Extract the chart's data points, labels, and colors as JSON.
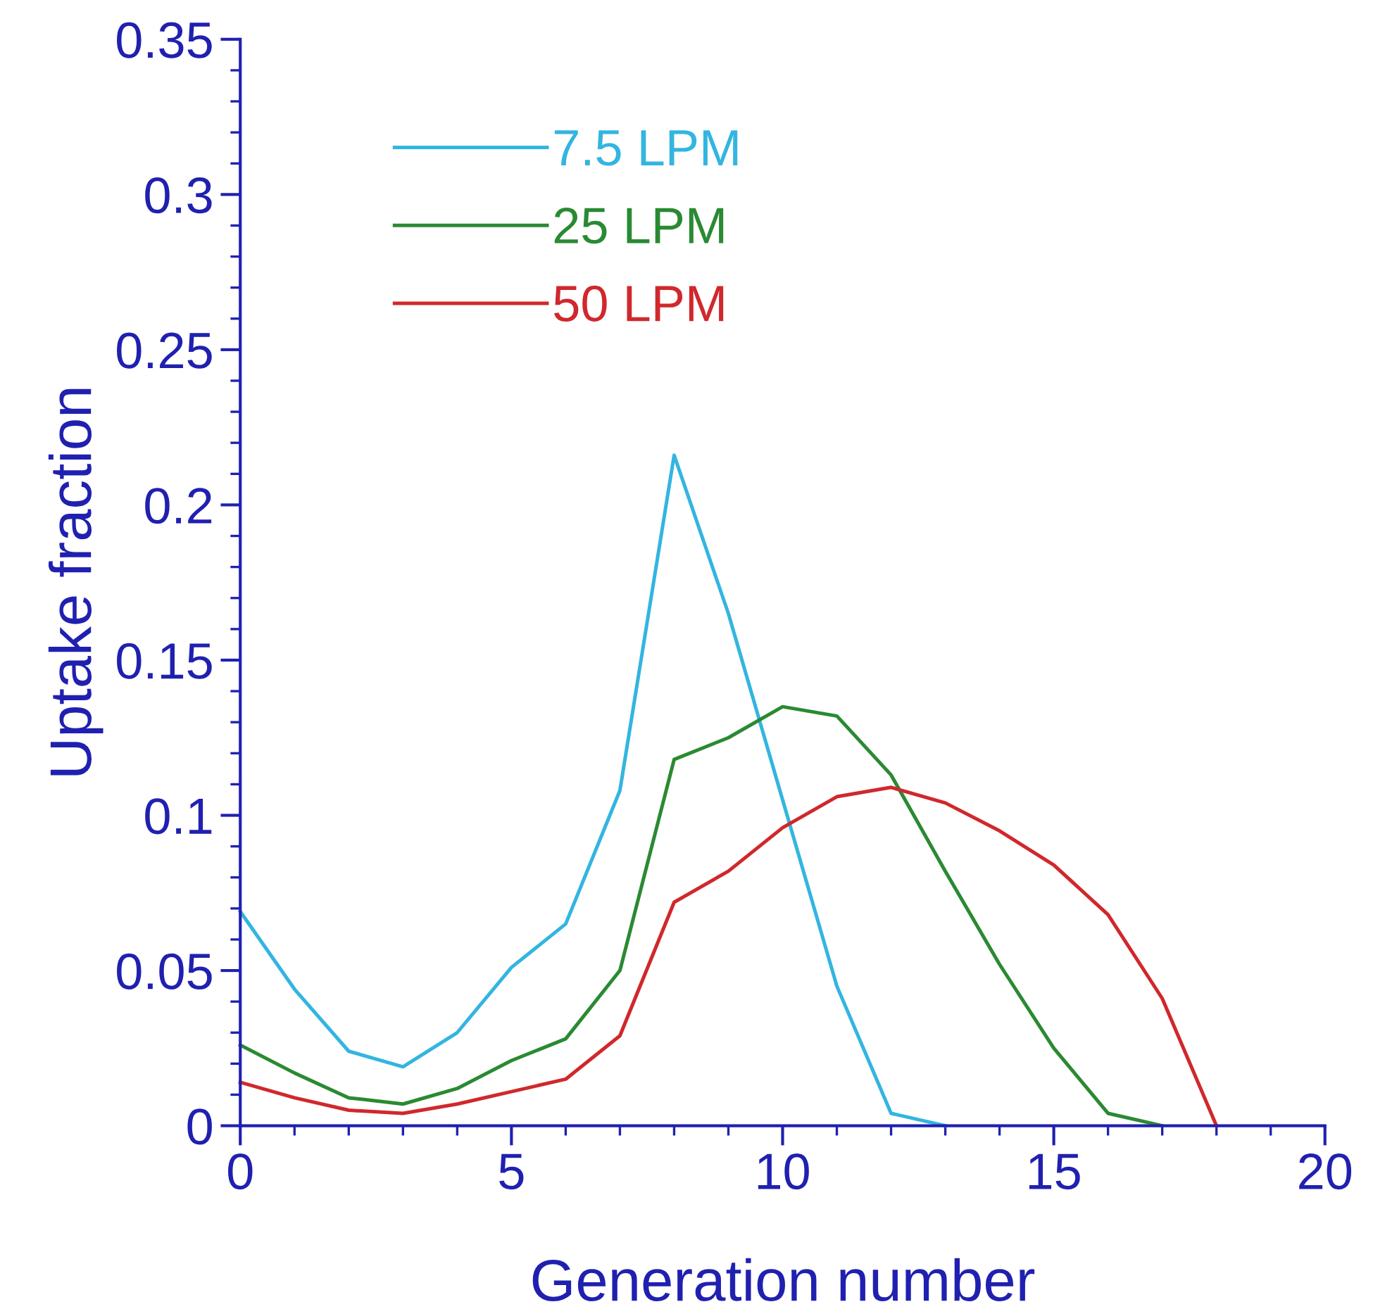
{
  "chart_data": {
    "type": "line",
    "xlabel": "Generation number",
    "ylabel": "Uptake fraction",
    "xlim": [
      0,
      20
    ],
    "xticks": [
      0,
      5,
      10,
      15,
      20
    ],
    "ylim": [
      0,
      0.35
    ],
    "yticks": [
      0,
      0.05,
      0.1,
      0.15,
      0.2,
      0.25,
      0.3,
      0.35
    ],
    "legend": "top left",
    "grid": false,
    "marker": "none",
    "line_style": "solid",
    "series": [
      {
        "name": "7.5 LPM",
        "color": "#33b5e0",
        "x": [
          0,
          1,
          2,
          3,
          4,
          5,
          6,
          7,
          8,
          9,
          10,
          11,
          12,
          13
        ],
        "values": [
          0.069,
          0.044,
          0.024,
          0.019,
          0.03,
          0.051,
          0.065,
          0.108,
          0.216,
          0.165,
          0.105,
          0.045,
          0.004,
          0
        ]
      },
      {
        "name": "25 LPM",
        "color": "#2a8a32",
        "x": [
          0,
          1,
          2,
          3,
          4,
          5,
          6,
          7,
          8,
          9,
          10,
          11,
          12,
          13,
          14,
          15,
          16,
          17
        ],
        "values": [
          0.026,
          0.017,
          0.009,
          0.007,
          0.012,
          0.021,
          0.028,
          0.05,
          0.118,
          0.125,
          0.135,
          0.132,
          0.113,
          0.082,
          0.052,
          0.025,
          0.004,
          0
        ]
      },
      {
        "name": "50 LPM",
        "color": "#d0282c",
        "x": [
          0,
          1,
          2,
          3,
          4,
          5,
          6,
          7,
          8,
          9,
          10,
          11,
          12,
          13,
          14,
          15,
          16,
          17,
          18
        ],
        "values": [
          0.014,
          0.009,
          0.005,
          0.004,
          0.007,
          0.011,
          0.015,
          0.029,
          0.072,
          0.082,
          0.096,
          0.106,
          0.109,
          0.104,
          0.095,
          0.084,
          0.068,
          0.041,
          0
        ]
      }
    ]
  }
}
